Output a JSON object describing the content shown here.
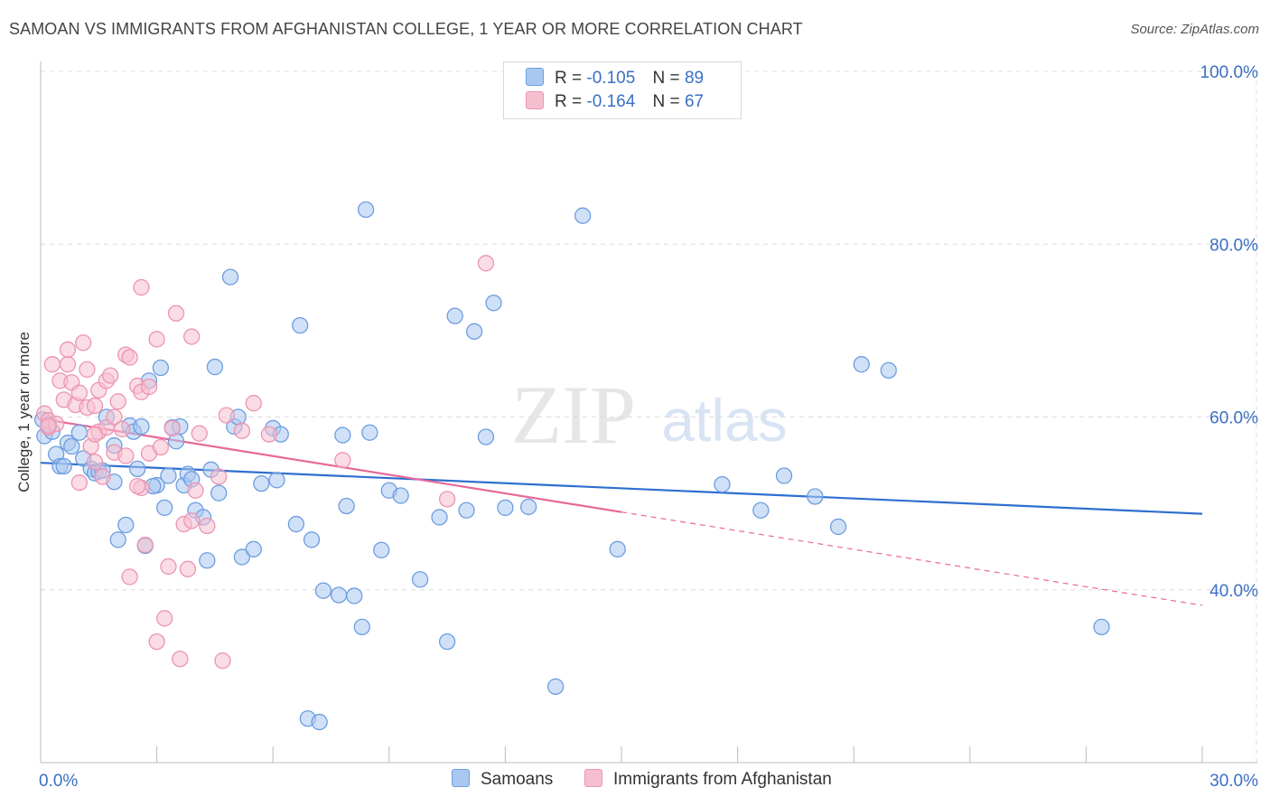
{
  "title": "SAMOAN VS IMMIGRANTS FROM AFGHANISTAN COLLEGE, 1 YEAR OR MORE CORRELATION CHART",
  "source": "Source: ZipAtlas.com",
  "watermark": {
    "zip": "ZIP",
    "atlas": "atlas"
  },
  "colors": {
    "samoans_fill": "#a9c8f0",
    "samoans_stroke": "#6d9de0",
    "samoans_line": "#2e6fd0",
    "afghan_fill": "#f6bfd0",
    "afghan_stroke": "#ec94b2",
    "afghan_line": "#e8689a",
    "axis_text": "#3a6fc4",
    "grid": "#dcdcdc"
  },
  "stats": {
    "rows": [
      {
        "r_label": "R =",
        "r_value": "-0.105",
        "n_label": "N =",
        "n_value": "89"
      },
      {
        "r_label": "R =",
        "r_value": "-0.164",
        "n_label": "N =",
        "n_value": "67"
      }
    ]
  },
  "legend": {
    "items": [
      "Samoans",
      "Immigrants from Afghanistan"
    ]
  },
  "chart_data": {
    "type": "scatter",
    "title": "SAMOAN VS IMMIGRANTS FROM AFGHANISTAN COLLEGE, 1 YEAR OR MORE CORRELATION CHART",
    "xlabel": "",
    "ylabel": "College, 1 year or more",
    "xlim": [
      0,
      30
    ],
    "ylim": [
      20,
      100
    ],
    "x_tick_labels": [
      "0.0%",
      "30.0%"
    ],
    "y_tick_labels": [
      "100.0%",
      "80.0%",
      "60.0%",
      "40.0%"
    ],
    "y_ticks": [
      100,
      80,
      60,
      40
    ],
    "grid": true,
    "legend_position": "bottom",
    "series": [
      {
        "name": "Samoans",
        "points": [
          [
            0.1,
            57.8
          ],
          [
            0.2,
            59.2
          ],
          [
            0.3,
            58.3
          ],
          [
            0.4,
            55.7
          ],
          [
            0.5,
            54.3
          ],
          [
            0.6,
            54.3
          ],
          [
            0.7,
            57.0
          ],
          [
            0.8,
            56.6
          ],
          [
            1.0,
            58.2
          ],
          [
            1.1,
            55.2
          ],
          [
            1.3,
            54.0
          ],
          [
            1.4,
            53.5
          ],
          [
            1.5,
            53.7
          ],
          [
            1.7,
            60.0
          ],
          [
            1.9,
            52.5
          ],
          [
            1.9,
            56.7
          ],
          [
            2.0,
            45.8
          ],
          [
            2.2,
            47.5
          ],
          [
            2.3,
            59.0
          ],
          [
            2.4,
            58.3
          ],
          [
            2.5,
            54.0
          ],
          [
            2.6,
            58.9
          ],
          [
            2.7,
            45.1
          ],
          [
            2.8,
            64.2
          ],
          [
            3.0,
            52.1
          ],
          [
            3.1,
            65.7
          ],
          [
            3.2,
            49.5
          ],
          [
            3.3,
            53.2
          ],
          [
            3.4,
            58.8
          ],
          [
            3.5,
            57.2
          ],
          [
            3.6,
            58.9
          ],
          [
            3.7,
            52.1
          ],
          [
            3.8,
            53.4
          ],
          [
            3.9,
            52.8
          ],
          [
            4.0,
            49.2
          ],
          [
            4.2,
            48.4
          ],
          [
            4.3,
            43.4
          ],
          [
            4.4,
            53.9
          ],
          [
            4.5,
            65.8
          ],
          [
            4.6,
            51.2
          ],
          [
            4.9,
            76.2
          ],
          [
            5.0,
            58.9
          ],
          [
            5.1,
            60.0
          ],
          [
            5.2,
            43.8
          ],
          [
            5.5,
            44.7
          ],
          [
            5.7,
            52.3
          ],
          [
            6.0,
            58.7
          ],
          [
            6.1,
            52.7
          ],
          [
            6.2,
            58.0
          ],
          [
            6.6,
            47.6
          ],
          [
            6.7,
            70.6
          ],
          [
            6.9,
            25.1
          ],
          [
            7.0,
            45.8
          ],
          [
            7.2,
            24.7
          ],
          [
            7.3,
            39.9
          ],
          [
            7.7,
            39.4
          ],
          [
            7.8,
            57.9
          ],
          [
            7.9,
            49.7
          ],
          [
            8.1,
            39.3
          ],
          [
            8.3,
            35.7
          ],
          [
            8.4,
            84.0
          ],
          [
            8.5,
            58.2
          ],
          [
            8.8,
            44.6
          ],
          [
            9.0,
            51.5
          ],
          [
            9.3,
            50.9
          ],
          [
            9.8,
            41.2
          ],
          [
            10.3,
            48.4
          ],
          [
            10.5,
            34.0
          ],
          [
            10.7,
            71.7
          ],
          [
            11.0,
            49.2
          ],
          [
            11.2,
            69.9
          ],
          [
            11.5,
            57.7
          ],
          [
            11.7,
            73.2
          ],
          [
            12.0,
            49.5
          ],
          [
            12.6,
            49.6
          ],
          [
            13.3,
            28.8
          ],
          [
            14.0,
            83.3
          ],
          [
            14.9,
            44.7
          ],
          [
            17.6,
            52.2
          ],
          [
            18.6,
            49.2
          ],
          [
            19.2,
            53.2
          ],
          [
            20.0,
            50.8
          ],
          [
            20.6,
            47.3
          ],
          [
            21.2,
            66.1
          ],
          [
            21.9,
            65.4
          ],
          [
            27.4,
            35.7
          ],
          [
            0.05,
            59.7
          ],
          [
            1.6,
            53.8
          ],
          [
            2.9,
            52.0
          ]
        ],
        "trend": {
          "x": [
            0,
            30
          ],
          "y": [
            54.7,
            48.8
          ]
        }
      },
      {
        "name": "Immigrants from Afghanistan",
        "points": [
          [
            0.1,
            60.4
          ],
          [
            0.2,
            59.6
          ],
          [
            0.2,
            58.8
          ],
          [
            0.3,
            66.1
          ],
          [
            0.4,
            59.2
          ],
          [
            0.5,
            64.2
          ],
          [
            0.6,
            62.0
          ],
          [
            0.7,
            66.1
          ],
          [
            0.7,
            67.8
          ],
          [
            0.8,
            64.0
          ],
          [
            0.9,
            61.4
          ],
          [
            1.0,
            52.4
          ],
          [
            1.0,
            62.8
          ],
          [
            1.1,
            68.6
          ],
          [
            1.2,
            65.5
          ],
          [
            1.2,
            61.1
          ],
          [
            1.3,
            56.6
          ],
          [
            1.4,
            61.3
          ],
          [
            1.4,
            54.8
          ],
          [
            1.5,
            58.3
          ],
          [
            1.5,
            63.1
          ],
          [
            1.6,
            53.1
          ],
          [
            1.7,
            64.2
          ],
          [
            1.7,
            58.8
          ],
          [
            1.8,
            64.8
          ],
          [
            1.9,
            60.0
          ],
          [
            1.9,
            55.9
          ],
          [
            2.0,
            61.8
          ],
          [
            2.1,
            58.6
          ],
          [
            2.2,
            67.2
          ],
          [
            2.3,
            66.9
          ],
          [
            2.3,
            41.5
          ],
          [
            2.5,
            63.6
          ],
          [
            2.6,
            75.0
          ],
          [
            2.6,
            51.8
          ],
          [
            2.6,
            62.9
          ],
          [
            2.7,
            45.2
          ],
          [
            2.8,
            55.8
          ],
          [
            2.8,
            63.5
          ],
          [
            3.0,
            69.0
          ],
          [
            3.0,
            34.0
          ],
          [
            3.1,
            56.5
          ],
          [
            3.2,
            36.7
          ],
          [
            3.3,
            42.7
          ],
          [
            3.4,
            58.7
          ],
          [
            3.5,
            72.0
          ],
          [
            3.6,
            32.0
          ],
          [
            3.7,
            47.6
          ],
          [
            3.8,
            42.4
          ],
          [
            3.9,
            69.3
          ],
          [
            3.9,
            48.0
          ],
          [
            4.0,
            51.5
          ],
          [
            4.1,
            58.1
          ],
          [
            4.3,
            47.4
          ],
          [
            4.6,
            53.1
          ],
          [
            4.7,
            31.8
          ],
          [
            4.8,
            60.2
          ],
          [
            5.2,
            58.4
          ],
          [
            5.5,
            61.6
          ],
          [
            5.9,
            58.0
          ],
          [
            7.8,
            55.0
          ],
          [
            10.5,
            50.5
          ],
          [
            11.5,
            77.8
          ],
          [
            2.5,
            52.0
          ],
          [
            1.4,
            58.0
          ],
          [
            2.2,
            55.5
          ],
          [
            0.2,
            59.0
          ]
        ],
        "trend": {
          "x": [
            0,
            15
          ],
          "y": [
            59.8,
            49.0
          ]
        },
        "trend_extension": {
          "x": [
            15,
            30
          ],
          "y": [
            49.0,
            38.2
          ]
        }
      }
    ]
  }
}
